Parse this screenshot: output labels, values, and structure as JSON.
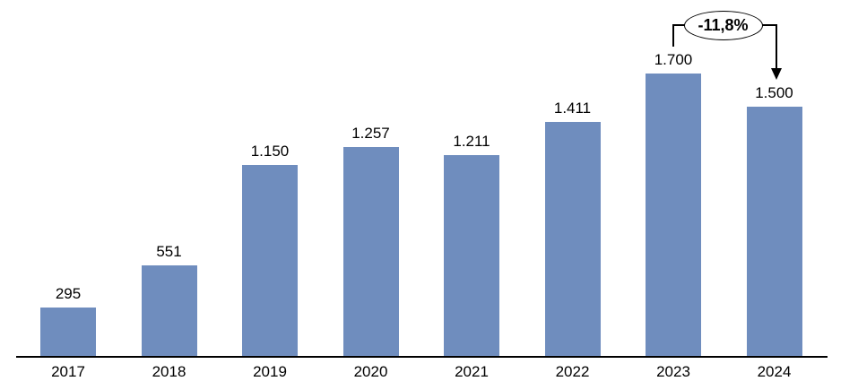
{
  "chart_data": {
    "type": "bar",
    "title": "",
    "xlabel": "",
    "ylabel": "",
    "categories": [
      "2017",
      "2018",
      "2019",
      "2020",
      "2021",
      "2022",
      "2023",
      "2024"
    ],
    "values": [
      295,
      551,
      1150,
      1257,
      1211,
      1411,
      1700,
      1500
    ],
    "value_labels": [
      "295",
      "551",
      "1.150",
      "1.257",
      "1.211",
      "1.411",
      "1.700",
      "1.500"
    ],
    "ylim": [
      0,
      1800
    ],
    "grid": false,
    "legend": false,
    "y_axis_visible": false,
    "x_axis_visible": true,
    "bar_color": "#6F8DBE",
    "axis_color": "#000000",
    "annotation": {
      "text": "-11,8%",
      "from_category": "2023",
      "to_category": "2024"
    }
  }
}
